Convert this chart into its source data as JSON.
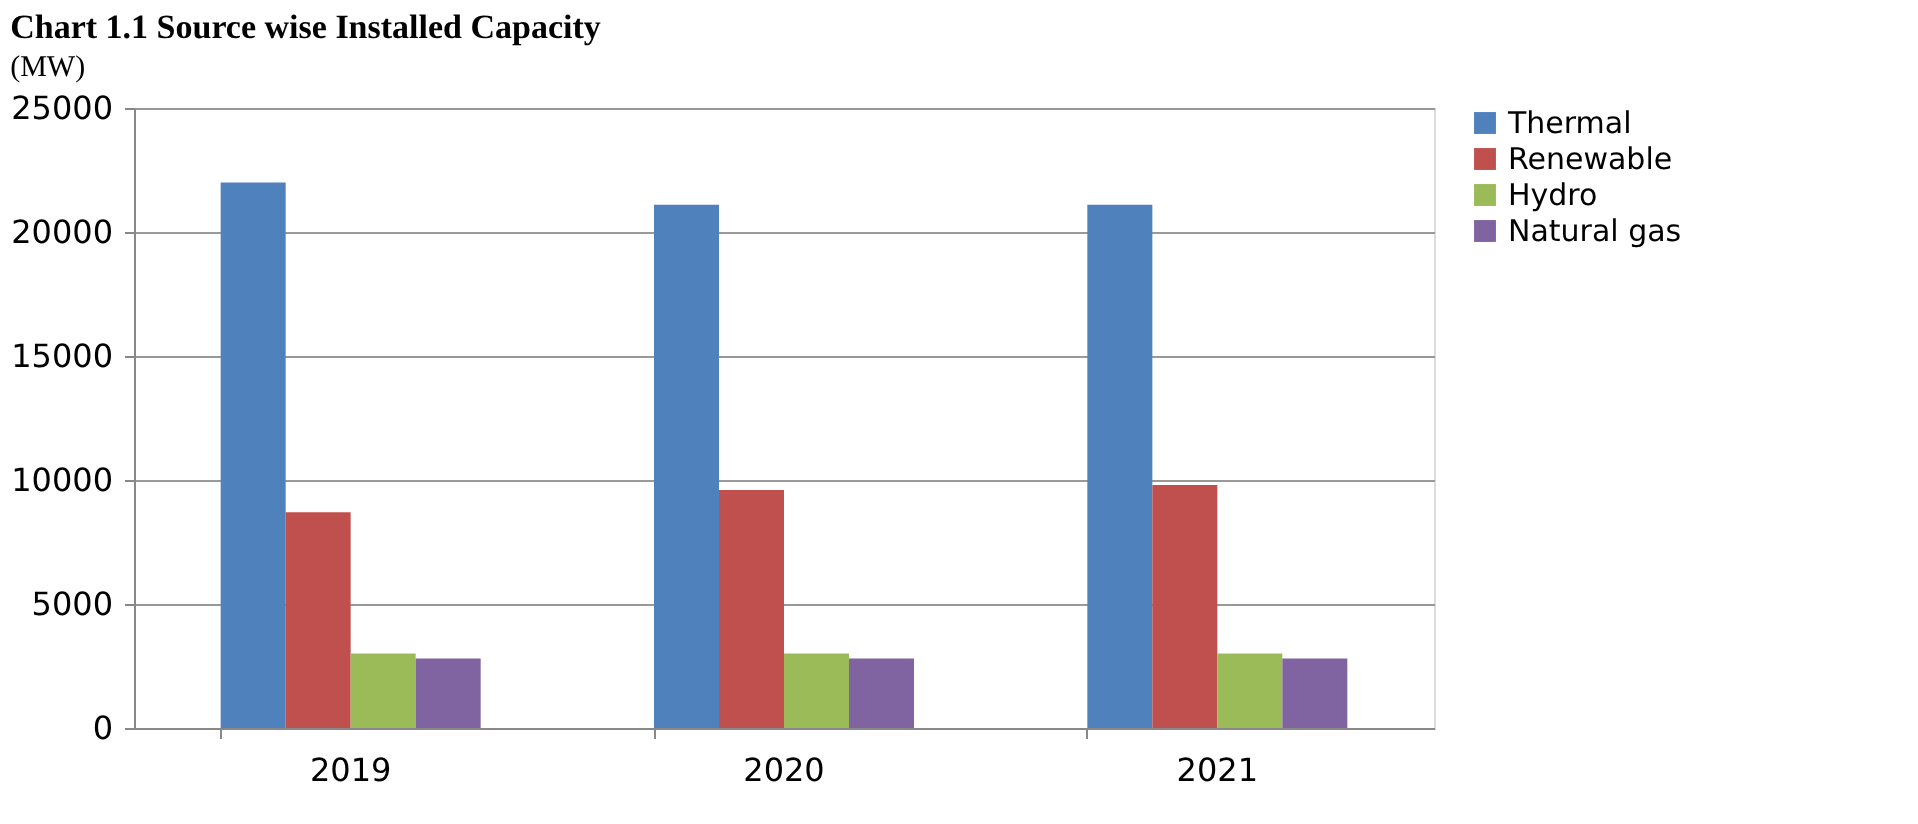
{
  "chart_data": {
    "type": "bar",
    "title": "Chart 1.1 Source wise Installed Capacity",
    "annotations": [
      "(MW)"
    ],
    "categories": [
      "2019",
      "2020",
      "2021"
    ],
    "series": [
      {
        "name": "Thermal",
        "color": "#4f81bd",
        "values": [
          22000,
          21100,
          21100
        ]
      },
      {
        "name": "Renewable",
        "color": "#c0504d",
        "values": [
          8700,
          9600,
          9800
        ]
      },
      {
        "name": "Hydro",
        "color": "#9bbb59",
        "values": [
          3000,
          3000,
          3000
        ]
      },
      {
        "name": "Natural gas",
        "color": "#8064a2",
        "values": [
          2800,
          2800,
          2800
        ]
      }
    ],
    "ylim": [
      0,
      25000
    ],
    "yticks": [
      0,
      5000,
      10000,
      15000,
      20000,
      25000
    ],
    "grid": "y",
    "legend": "right"
  }
}
